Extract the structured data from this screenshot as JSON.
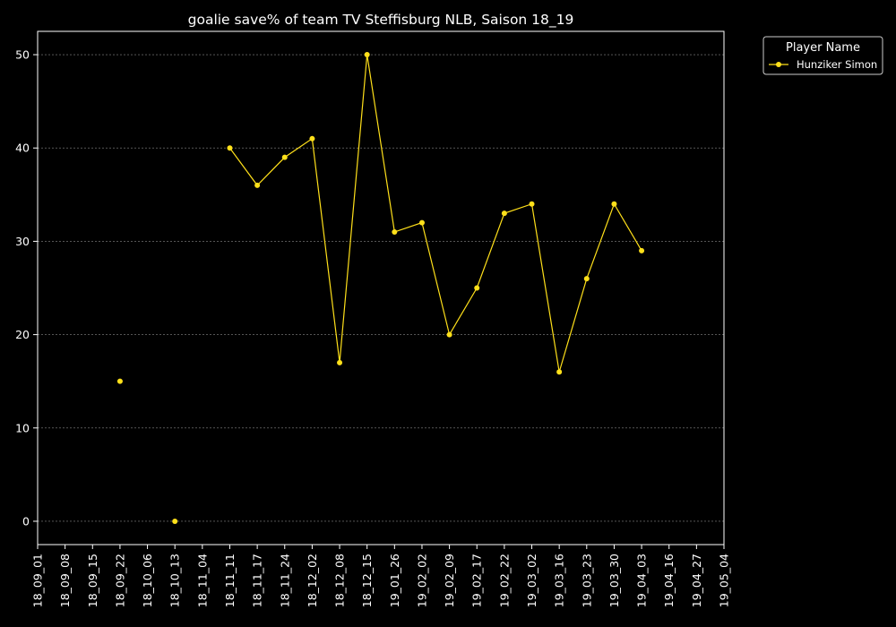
{
  "chart_data": {
    "type": "line",
    "title": "goalie save% of team TV Steffisburg NLB, Saison 18_19",
    "xlabel": "",
    "ylabel": "",
    "x_categories": [
      "18_09_01",
      "18_09_08",
      "18_09_15",
      "18_09_22",
      "18_10_06",
      "18_10_13",
      "18_11_04",
      "18_11_11",
      "18_11_17",
      "18_11_24",
      "18_12_02",
      "18_12_08",
      "18_12_15",
      "19_01_26",
      "19_02_02",
      "19_02_09",
      "19_02_17",
      "19_02_22",
      "19_03_02",
      "19_03_16",
      "19_03_23",
      "19_03_30",
      "19_04_03",
      "19_04_16",
      "19_04_27",
      "19_05_04"
    ],
    "ylim": [
      -2.5,
      52.5
    ],
    "yticks": [
      0,
      10,
      20,
      30,
      40,
      50
    ],
    "grid": true,
    "legend": {
      "title": "Player Name",
      "placement": "outside-top-right"
    },
    "series": [
      {
        "name": "Hunziker Simon",
        "color": "#ffe01a",
        "values": [
          null,
          null,
          null,
          15,
          null,
          0,
          null,
          40,
          36,
          39,
          41,
          17,
          50,
          31,
          32,
          20,
          25,
          33,
          34,
          16,
          26,
          34,
          29,
          null,
          null,
          null
        ]
      }
    ]
  },
  "colors": {
    "background": "#000000",
    "foreground": "#ffffff",
    "grid": "#888888"
  }
}
